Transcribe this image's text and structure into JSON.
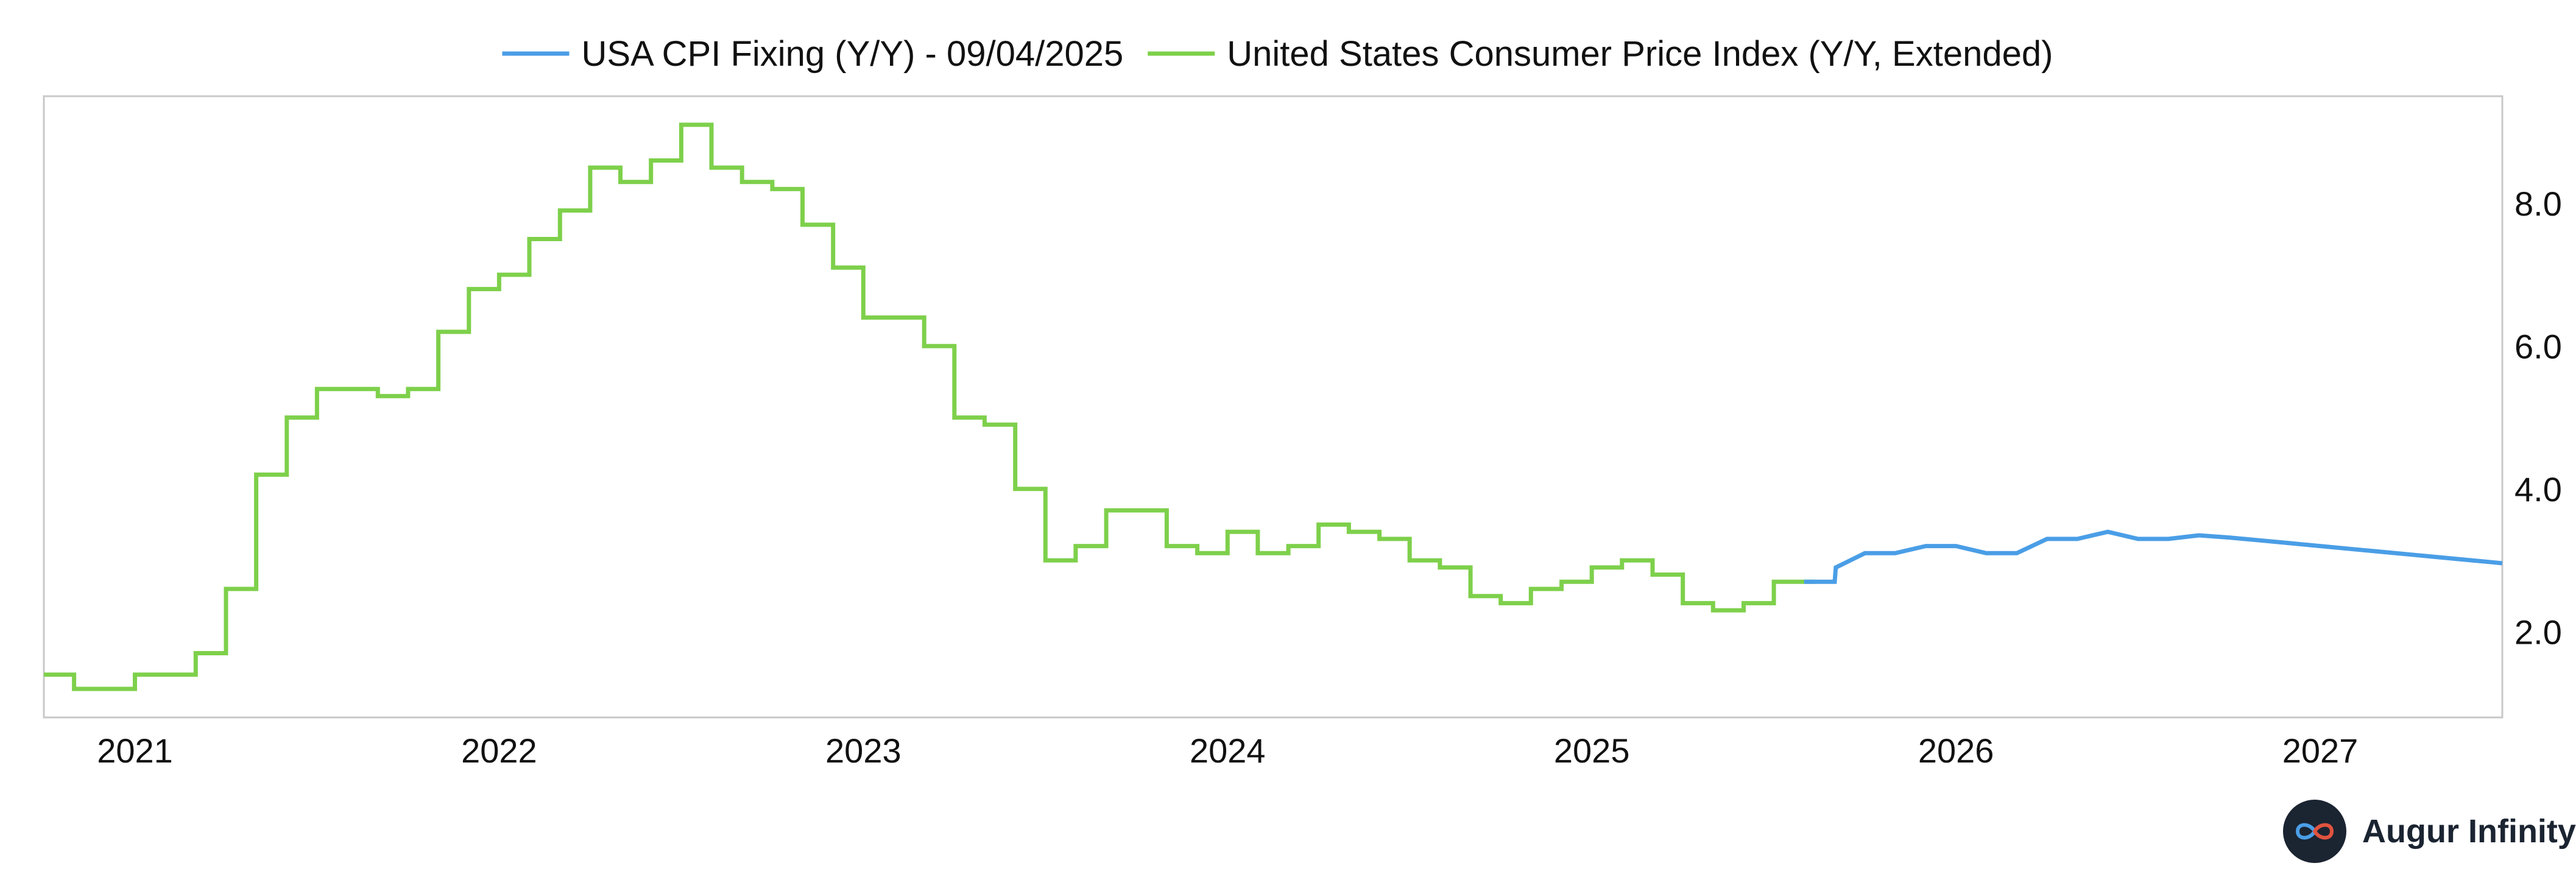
{
  "chart_data": {
    "type": "line",
    "title": "",
    "xlabel": "",
    "ylabel": "",
    "x_ticks": [
      "2021",
      "2022",
      "2023",
      "2024",
      "2025",
      "2026",
      "2027"
    ],
    "x_range": [
      2020.75,
      2027.5
    ],
    "y_ticks": [
      2.0,
      4.0,
      6.0,
      8.0
    ],
    "y_tick_labels": [
      "2.0",
      "4.0",
      "6.0",
      "8.0"
    ],
    "ylim": [
      0.8,
      9.5
    ],
    "y_axis_side": "right",
    "grid": false,
    "legend_position": "top-center",
    "series": [
      {
        "name": "United States Consumer Price Index (Y/Y, Extended)",
        "color": "#7ed04b",
        "step": true,
        "points": [
          [
            2020.75,
            1.4
          ],
          [
            2020.833,
            1.2
          ],
          [
            2020.917,
            1.2
          ],
          [
            2021.0,
            1.4
          ],
          [
            2021.083,
            1.4
          ],
          [
            2021.167,
            1.7
          ],
          [
            2021.25,
            2.6
          ],
          [
            2021.333,
            4.2
          ],
          [
            2021.417,
            5.0
          ],
          [
            2021.5,
            5.4
          ],
          [
            2021.583,
            5.4
          ],
          [
            2021.667,
            5.3
          ],
          [
            2021.75,
            5.4
          ],
          [
            2021.833,
            6.2
          ],
          [
            2021.917,
            6.8
          ],
          [
            2022.0,
            7.0
          ],
          [
            2022.083,
            7.5
          ],
          [
            2022.167,
            7.9
          ],
          [
            2022.25,
            8.5
          ],
          [
            2022.333,
            8.3
          ],
          [
            2022.417,
            8.6
          ],
          [
            2022.5,
            9.1
          ],
          [
            2022.583,
            8.5
          ],
          [
            2022.667,
            8.3
          ],
          [
            2022.75,
            8.2
          ],
          [
            2022.833,
            7.7
          ],
          [
            2022.917,
            7.1
          ],
          [
            2023.0,
            6.4
          ],
          [
            2023.083,
            6.4
          ],
          [
            2023.167,
            6.0
          ],
          [
            2023.25,
            5.0
          ],
          [
            2023.333,
            4.9
          ],
          [
            2023.417,
            4.0
          ],
          [
            2023.5,
            3.0
          ],
          [
            2023.583,
            3.2
          ],
          [
            2023.667,
            3.7
          ],
          [
            2023.75,
            3.7
          ],
          [
            2023.833,
            3.2
          ],
          [
            2023.917,
            3.1
          ],
          [
            2024.0,
            3.4
          ],
          [
            2024.083,
            3.1
          ],
          [
            2024.167,
            3.2
          ],
          [
            2024.25,
            3.5
          ],
          [
            2024.333,
            3.4
          ],
          [
            2024.417,
            3.3
          ],
          [
            2024.5,
            3.0
          ],
          [
            2024.583,
            2.9
          ],
          [
            2024.667,
            2.5
          ],
          [
            2024.75,
            2.4
          ],
          [
            2024.833,
            2.6
          ],
          [
            2024.917,
            2.7
          ],
          [
            2025.0,
            2.9
          ],
          [
            2025.083,
            3.0
          ],
          [
            2025.167,
            2.8
          ],
          [
            2025.25,
            2.4
          ],
          [
            2025.333,
            2.3
          ],
          [
            2025.417,
            2.4
          ],
          [
            2025.5,
            2.7
          ],
          [
            2025.583,
            2.7
          ]
        ]
      },
      {
        "name": "USA CPI Fixing (Y/Y) - 09/04/2025",
        "color": "#4a9ee6",
        "step": false,
        "points": [
          [
            2025.583,
            2.7
          ],
          [
            2025.667,
            2.7
          ],
          [
            2025.67,
            2.9
          ],
          [
            2025.75,
            3.1
          ],
          [
            2025.833,
            3.1
          ],
          [
            2025.917,
            3.2
          ],
          [
            2026.0,
            3.2
          ],
          [
            2026.083,
            3.1
          ],
          [
            2026.167,
            3.1
          ],
          [
            2026.25,
            3.3
          ],
          [
            2026.333,
            3.3
          ],
          [
            2026.417,
            3.4
          ],
          [
            2026.5,
            3.3
          ],
          [
            2026.583,
            3.3
          ],
          [
            2026.667,
            3.35
          ],
          [
            2026.75,
            3.32
          ],
          [
            2026.833,
            3.28
          ],
          [
            2026.917,
            3.24
          ],
          [
            2027.0,
            3.2
          ],
          [
            2027.083,
            3.16
          ],
          [
            2027.167,
            3.12
          ],
          [
            2027.25,
            3.08
          ],
          [
            2027.333,
            3.04
          ],
          [
            2027.417,
            3.0
          ],
          [
            2027.5,
            2.96
          ]
        ]
      }
    ],
    "legend_order": [
      1,
      0
    ]
  },
  "branding": {
    "name": "Augur Infinity",
    "logo_icon": "infinity-icon"
  },
  "colors": {
    "frame": "#c8c8c8",
    "text": "#111111",
    "brand_bg": "#1b2431",
    "brand_loop_a": "#4a9ee6",
    "brand_loop_b": "#e0533f"
  }
}
